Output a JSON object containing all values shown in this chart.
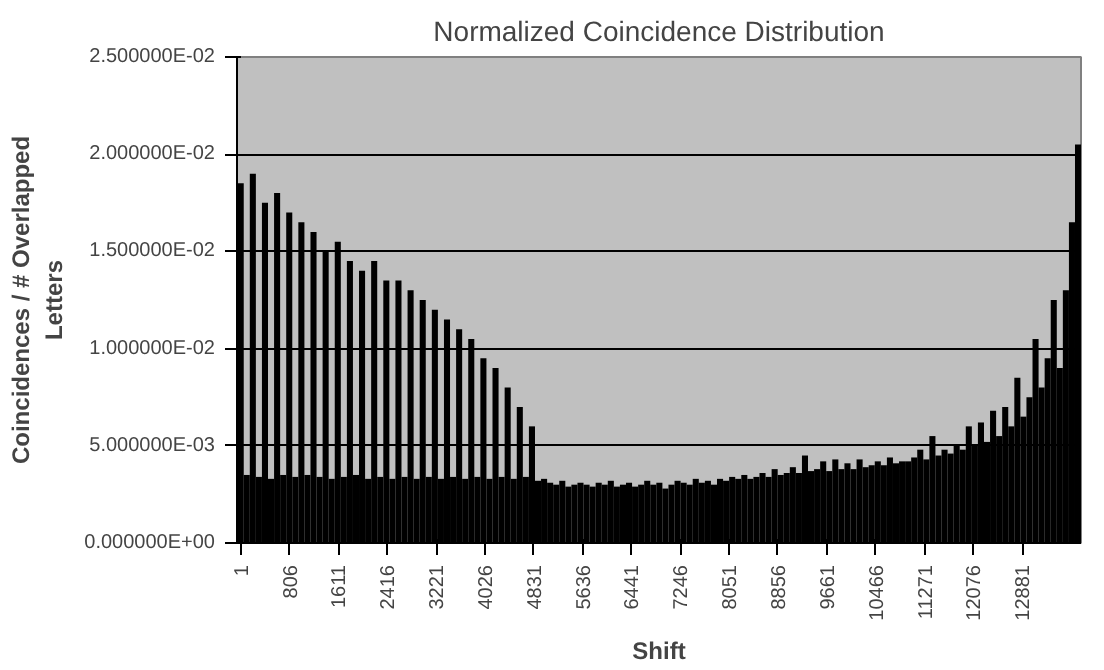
{
  "chart_data": {
    "type": "bar",
    "title": "Normalized Coincidence Distribution",
    "xlabel": "Shift",
    "ylabel": "Coincidences / # Overlapped Letters",
    "color": "#000000",
    "x": [
      1,
      101,
      201,
      301,
      401,
      501,
      601,
      701,
      801,
      901,
      1001,
      1101,
      1201,
      1301,
      1401,
      1501,
      1601,
      1701,
      1801,
      1901,
      2001,
      2101,
      2201,
      2301,
      2401,
      2501,
      2601,
      2701,
      2801,
      2901,
      3001,
      3101,
      3201,
      3301,
      3401,
      3501,
      3601,
      3701,
      3801,
      3901,
      4001,
      4101,
      4201,
      4301,
      4401,
      4501,
      4601,
      4701,
      4801,
      4901,
      5001,
      5101,
      5201,
      5301,
      5401,
      5501,
      5601,
      5701,
      5801,
      5901,
      6001,
      6101,
      6201,
      6301,
      6401,
      6501,
      6601,
      6701,
      6801,
      6901,
      7001,
      7101,
      7201,
      7301,
      7401,
      7501,
      7601,
      7701,
      7801,
      7901,
      8001,
      8101,
      8201,
      8301,
      8401,
      8501,
      8601,
      8701,
      8801,
      8901,
      9001,
      9101,
      9201,
      9301,
      9401,
      9501,
      9601,
      9701,
      9801,
      9901,
      10001,
      10101,
      10201,
      10301,
      10401,
      10501,
      10601,
      10701,
      10801,
      10901,
      11001,
      11101,
      11201,
      11301,
      11401,
      11501,
      11601,
      11701,
      11801,
      11901,
      12001,
      12101,
      12201,
      12301,
      12401,
      12501,
      12601,
      12701,
      12801,
      12901,
      13001,
      13101,
      13201,
      13301,
      13401,
      13501,
      13601,
      13701,
      13801
    ],
    "values": [
      0.0185,
      0.0035,
      0.019,
      0.0034,
      0.0175,
      0.0033,
      0.018,
      0.0035,
      0.017,
      0.0034,
      0.0165,
      0.0035,
      0.016,
      0.0034,
      0.015,
      0.0033,
      0.0155,
      0.0034,
      0.0145,
      0.0035,
      0.014,
      0.0033,
      0.0145,
      0.0034,
      0.0135,
      0.0033,
      0.0135,
      0.0034,
      0.013,
      0.0033,
      0.0125,
      0.0034,
      0.012,
      0.0033,
      0.0115,
      0.0034,
      0.011,
      0.0033,
      0.0105,
      0.0034,
      0.0095,
      0.0033,
      0.009,
      0.0034,
      0.008,
      0.0033,
      0.007,
      0.0034,
      0.006,
      0.0032,
      0.0033,
      0.0031,
      0.003,
      0.0032,
      0.0029,
      0.003,
      0.0031,
      0.003,
      0.0029,
      0.0031,
      0.003,
      0.0032,
      0.0029,
      0.003,
      0.0031,
      0.0029,
      0.003,
      0.0032,
      0.003,
      0.0031,
      0.0028,
      0.003,
      0.0032,
      0.0031,
      0.003,
      0.0033,
      0.0031,
      0.0032,
      0.003,
      0.0033,
      0.0032,
      0.0034,
      0.0033,
      0.0035,
      0.0033,
      0.0034,
      0.0036,
      0.0034,
      0.0038,
      0.0035,
      0.0036,
      0.0039,
      0.0036,
      0.0045,
      0.0037,
      0.0038,
      0.0042,
      0.0037,
      0.0043,
      0.0038,
      0.0041,
      0.0038,
      0.0043,
      0.0039,
      0.004,
      0.0042,
      0.004,
      0.0044,
      0.0041,
      0.0042,
      0.0042,
      0.0044,
      0.0048,
      0.0043,
      0.0055,
      0.0045,
      0.0048,
      0.0046,
      0.005,
      0.0048,
      0.006,
      0.005,
      0.0062,
      0.0052,
      0.0068,
      0.0055,
      0.007,
      0.006,
      0.0085,
      0.0065,
      0.0075,
      0.0105,
      0.008,
      0.0095,
      0.0125,
      0.009,
      0.013,
      0.0165,
      0.0205
    ],
    "xlim": [
      -60,
      13850
    ],
    "xticks": [
      1,
      806,
      1611,
      2416,
      3221,
      4026,
      4831,
      5636,
      6441,
      7246,
      8051,
      8856,
      9661,
      10466,
      11271,
      12076,
      12881
    ],
    "ylim": [
      0,
      0.025
    ],
    "yticks": [
      {
        "value": 0,
        "label": "0.000000E+00"
      },
      {
        "value": 0.005,
        "label": "5.000000E-03"
      },
      {
        "value": 0.01,
        "label": "1.000000E-02"
      },
      {
        "value": 0.015,
        "label": "1.500000E-02"
      },
      {
        "value": 0.02,
        "label": "2.000000E-02"
      },
      {
        "value": 0.025,
        "label": "2.500000E-02"
      }
    ],
    "grid": "y"
  }
}
